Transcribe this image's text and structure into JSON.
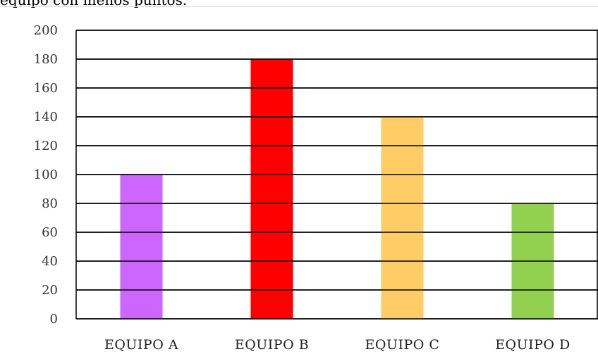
{
  "intro_text": "equipo con menos puntos.",
  "chart_data": {
    "type": "bar",
    "categories": [
      "EQUIPO A",
      "EQUIPO B",
      "EQUIPO C",
      "EQUIPO D"
    ],
    "values": [
      100,
      180,
      140,
      80
    ],
    "colors": [
      "#cc66ff",
      "#ff0000",
      "#ffcc66",
      "#92d050"
    ],
    "ylim": [
      0,
      200
    ],
    "yticks": [
      0,
      20,
      40,
      60,
      80,
      100,
      120,
      140,
      160,
      180,
      200
    ],
    "grid": true,
    "title": "",
    "xlabel": "",
    "ylabel": ""
  }
}
